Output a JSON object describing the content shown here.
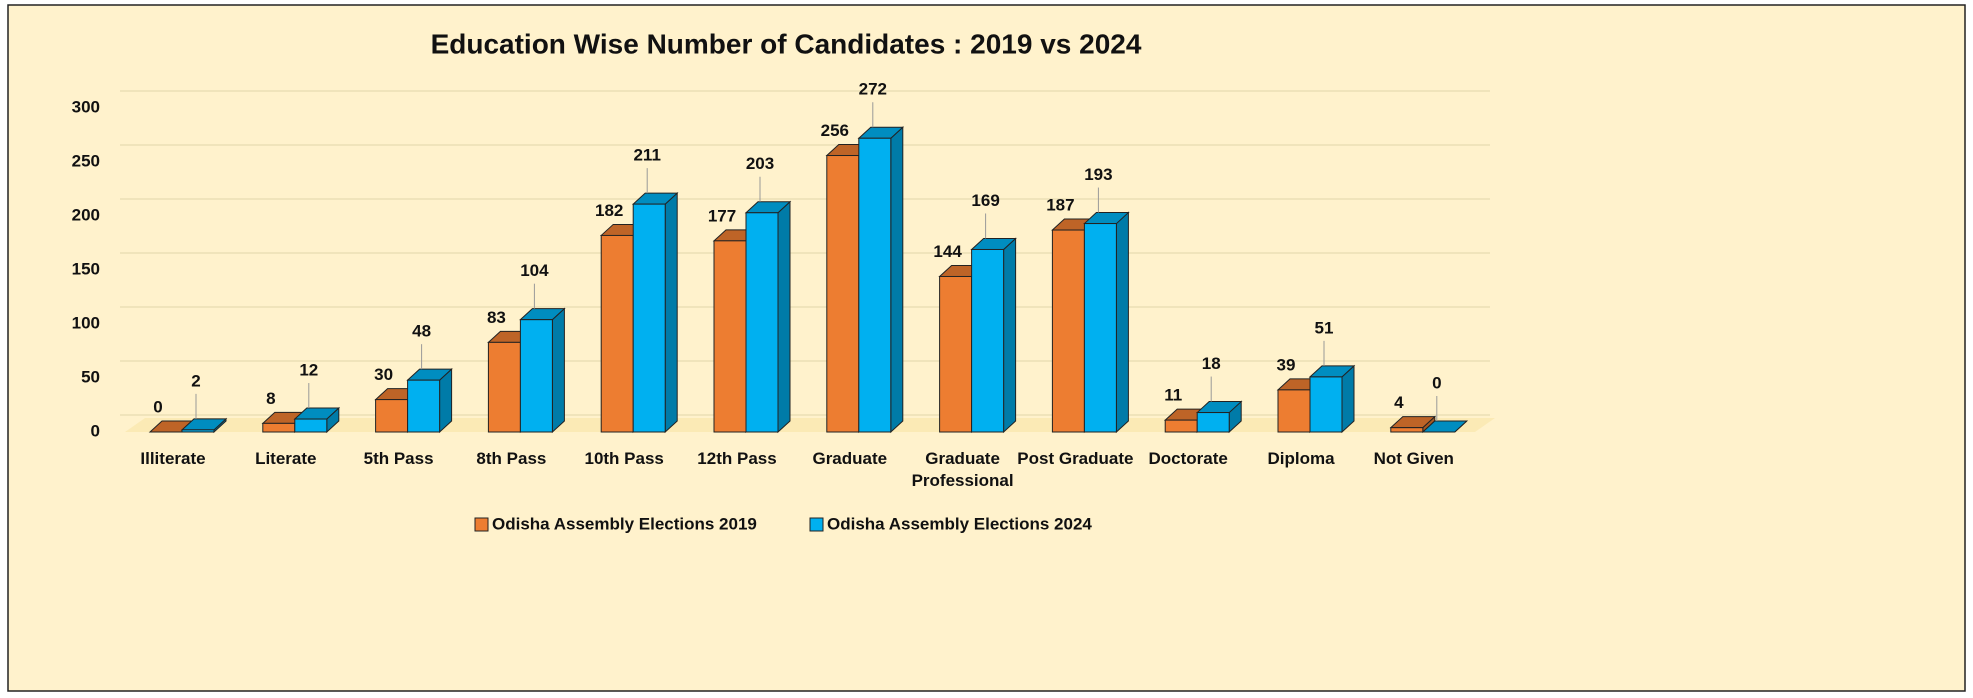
{
  "chart_data": {
    "type": "bar3d",
    "title": "Education Wise Number of Candidates : 2019 vs 2024",
    "categories": [
      "Illiterate",
      "Literate",
      "5th Pass",
      "8th Pass",
      "10th Pass",
      "12th Pass",
      "Graduate",
      "Graduate Professional",
      "Post Graduate",
      "Doctorate",
      "Diploma",
      "Not Given"
    ],
    "series": [
      {
        "name": "Odisha Assembly Elections 2019",
        "color": "#ed7d31",
        "values": [
          0,
          8,
          30,
          83,
          182,
          177,
          256,
          144,
          187,
          11,
          39,
          4
        ]
      },
      {
        "name": "Odisha Assembly Elections 2024",
        "color": "#00b0f0",
        "values": [
          2,
          12,
          48,
          104,
          211,
          203,
          272,
          169,
          193,
          18,
          51,
          0
        ]
      }
    ],
    "ylim": [
      0,
      300
    ],
    "yticks": [
      0,
      50,
      100,
      150,
      200,
      250,
      300
    ],
    "grid": true,
    "legend": "bottom"
  }
}
